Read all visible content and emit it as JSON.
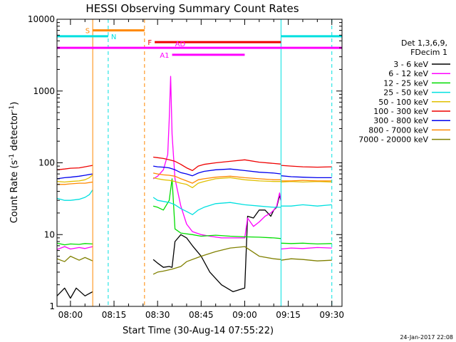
{
  "chart_data": {
    "type": "line",
    "title": "HESSI Observing Summary Count Rates",
    "xlabel": "Start Time (30-Aug-14 07:55:22)",
    "ylabel": "Count Rate (s",
    "ylabel_sup": "-1",
    "ylabel_tail": " detector",
    "ylabel_sup2": "-1",
    "ylabel_close": ")",
    "footer": "24-Jan-2017 22:08",
    "y_scale": "log",
    "ylim": [
      1,
      10000
    ],
    "xlim": [
      "07:55:22",
      "09:33:30"
    ],
    "x_ticks": [
      {
        "label": "08:00",
        "t": "08:00"
      },
      {
        "label": "08:15",
        "t": "08:15"
      },
      {
        "label": "08:30",
        "t": "08:30"
      },
      {
        "label": "08:45",
        "t": "08:45"
      },
      {
        "label": "09:00",
        "t": "09:00"
      },
      {
        "label": "09:15",
        "t": "09:15"
      },
      {
        "label": "09:30",
        "t": "09:30"
      }
    ],
    "y_ticks": [
      {
        "label": "1",
        "v": 1
      },
      {
        "label": "10",
        "v": 10
      },
      {
        "label": "100",
        "v": 100
      },
      {
        "label": "1000",
        "v": 1000
      },
      {
        "label": "10000",
        "v": 10000
      }
    ],
    "legend": {
      "header": [
        "Det 1,3,6,9,",
        "FDecim 1"
      ],
      "placement": "right",
      "entries": [
        {
          "label": "3 - 6 keV",
          "color": "#000000"
        },
        {
          "label": "6 - 12 keV",
          "color": "#ff00ff"
        },
        {
          "label": "12 - 25 keV",
          "color": "#00dd00"
        },
        {
          "label": "25 - 50 keV",
          "color": "#00e0e0"
        },
        {
          "label": "50 - 100 keV",
          "color": "#e0c000"
        },
        {
          "label": "100 - 300 keV",
          "color": "#ee0000"
        },
        {
          "label": "300 - 800 keV",
          "color": "#0000ee"
        },
        {
          "label": "800 - 7000 keV",
          "color": "#ff8800"
        },
        {
          "label": "7000 - 20000 keV",
          "color": "#808000"
        }
      ]
    },
    "data_gaps": [
      [
        "08:07:40",
        "08:28:30"
      ]
    ],
    "vertical_markers": [
      {
        "t": "08:07:40",
        "color": "#ff8800",
        "style": "solid"
      },
      {
        "t": "08:13:00",
        "color": "#00e0e0",
        "style": "dashed"
      },
      {
        "t": "08:25:30",
        "color": "#ff8800",
        "style": "dashed"
      },
      {
        "t": "09:12:30",
        "color": "#00e0e0",
        "style": "solid"
      },
      {
        "t": "09:30:00",
        "color": "#00e0e0",
        "style": "dashed"
      }
    ],
    "flag_bars": [
      {
        "label": "S",
        "color": "#ff8800",
        "level": 7000,
        "start": "08:07:40",
        "end": "08:25:30",
        "label_side": "left"
      },
      {
        "label": "N",
        "color": "#00e0e0",
        "level": 5800,
        "start": "07:55:22",
        "end": "08:13:00",
        "label_side": "right"
      },
      {
        "label": "N",
        "color": "#00e0e0",
        "level": 5800,
        "start": "09:12:30",
        "end": "09:33:30",
        "label_side": "none"
      },
      {
        "label": "F",
        "color": "#ee0000",
        "level": 4800,
        "start": "08:29:00",
        "end": "09:12:30",
        "label_side": "left"
      },
      {
        "label": "AD",
        "color": "#ff00ff",
        "level": 4000,
        "start": "07:55:22",
        "end": "09:33:30",
        "label_side": "none",
        "label_at": "08:36:00"
      },
      {
        "label": "A1",
        "color": "#ff00ff",
        "level": 3200,
        "start": "08:35:00",
        "end": "09:00:00",
        "label_side": "left"
      }
    ],
    "series": [
      {
        "name": "3 - 6 keV",
        "color": "#000000",
        "segments": [
          {
            "x": [
              "07:55:22",
              "07:58:00",
              "08:00:00",
              "08:02:00",
              "08:05:00",
              "08:07:40"
            ],
            "y": [
              1.4,
              1.8,
              1.3,
              1.8,
              1.4,
              1.6
            ]
          },
          {
            "x": [
              "08:28:30",
              "08:30:00",
              "08:32:00",
              "08:34:00",
              "08:35:00",
              "08:36:00",
              "08:38:00",
              "08:40:00",
              "08:42:00",
              "08:45:00",
              "08:48:00",
              "08:52:00",
              "08:56:00",
              "09:00:00",
              "09:01:00",
              "09:03:00",
              "09:05:00",
              "09:07:00",
              "09:09:00",
              "09:10:00",
              "09:11:00",
              "09:12:00",
              "09:12:30"
            ],
            "y": [
              4.5,
              4.0,
              3.5,
              3.6,
              3.5,
              8,
              10,
              9,
              7,
              5,
              3,
              2,
              1.6,
              1.8,
              18,
              17,
              22,
              22,
              18,
              22,
              24,
              35,
              30
            ]
          }
        ]
      },
      {
        "name": "6 - 12 keV",
        "color": "#ff00ff",
        "segments": [
          {
            "x": [
              "07:55:22",
              "07:58:00",
              "08:00:00",
              "08:03:00",
              "08:05:00",
              "08:07:40"
            ],
            "y": [
              6.2,
              6.8,
              6.3,
              6.6,
              6.4,
              6.8
            ]
          },
          {
            "x": [
              "08:28:30",
              "08:30:00",
              "08:32:00",
              "08:33:30",
              "08:34:00",
              "08:34:30",
              "08:35:00",
              "08:36:00",
              "08:38:00",
              "08:40:00",
              "08:42:00",
              "08:45:00",
              "08:48:00",
              "08:52:00",
              "08:56:00",
              "09:00:00",
              "09:01:00",
              "09:03:00",
              "09:05:00",
              "09:07:00",
              "09:09:00",
              "09:10:00",
              "09:11:00",
              "09:12:00",
              "09:12:30"
            ],
            "y": [
              60,
              65,
              80,
              130,
              400,
              1600,
              250,
              60,
              25,
              14,
              11,
              10,
              9.5,
              9,
              9,
              9,
              17,
              13,
              15,
              18,
              20,
              22,
              25,
              38,
              30
            ]
          },
          {
            "x": [
              "09:12:30",
              "09:16:00",
              "09:20:00",
              "09:25:00",
              "09:30:00"
            ],
            "y": [
              6.3,
              6.5,
              6.4,
              6.6,
              6.5
            ]
          }
        ]
      },
      {
        "name": "12 - 25 keV",
        "color": "#00dd00",
        "segments": [
          {
            "x": [
              "07:55:22",
              "07:58:00",
              "08:00:00",
              "08:03:00",
              "08:05:00",
              "08:07:40"
            ],
            "y": [
              7.6,
              7.2,
              7.4,
              7.3,
              7.5,
              7.4
            ]
          },
          {
            "x": [
              "08:28:30",
              "08:30:00",
              "08:32:00",
              "08:34:00",
              "08:35:00",
              "08:36:00",
              "08:38:00",
              "08:42:00",
              "08:45:00",
              "08:50:00",
              "08:55:00",
              "09:00:00",
              "09:05:00",
              "09:10:00",
              "09:12:30"
            ],
            "y": [
              25,
              24,
              22,
              30,
              60,
              12,
              10.5,
              10,
              9.5,
              9.8,
              9.5,
              9.3,
              9.2,
              9.0,
              8.8
            ]
          },
          {
            "x": [
              "09:12:30",
              "09:16:00",
              "09:20:00",
              "09:25:00",
              "09:30:00"
            ],
            "y": [
              7.6,
              7.5,
              7.6,
              7.4,
              7.5
            ]
          }
        ]
      },
      {
        "name": "25 - 50 keV",
        "color": "#00e0e0",
        "segments": [
          {
            "x": [
              "07:55:22",
              "07:58:00",
              "08:00:00",
              "08:03:00",
              "08:05:00",
              "08:06:30",
              "08:07:40"
            ],
            "y": [
              32,
              30,
              30,
              31,
              33,
              36,
              42
            ]
          },
          {
            "x": [
              "08:28:30",
              "08:30:00",
              "08:32:00",
              "08:34:00",
              "08:36:00",
              "08:38:00",
              "08:40:00",
              "08:42:00",
              "08:44:00",
              "08:46:00",
              "08:50:00",
              "08:55:00",
              "09:00:00",
              "09:05:00",
              "09:10:00",
              "09:12:30"
            ],
            "y": [
              33,
              30,
              29,
              28,
              26,
              23,
              21,
              19,
              22,
              24,
              27,
              28,
              26,
              25,
              24,
              24
            ]
          },
          {
            "x": [
              "09:12:30",
              "09:16:00",
              "09:20:00",
              "09:25:00",
              "09:30:00"
            ],
            "y": [
              25,
              25,
              26,
              25,
              26
            ]
          }
        ]
      },
      {
        "name": "50 - 100 keV",
        "color": "#e0c000",
        "segments": [
          {
            "x": [
              "07:55:22",
              "07:58:00",
              "08:00:00",
              "08:03:00",
              "08:05:00",
              "08:06:30",
              "08:07:40"
            ],
            "y": [
              55,
              54,
              55,
              56,
              58,
              62,
              68
            ]
          },
          {
            "x": [
              "08:28:30",
              "08:30:00",
              "08:32:00",
              "08:34:00",
              "08:36:00",
              "08:38:00",
              "08:40:00",
              "08:42:00",
              "08:44:00",
              "08:46:00",
              "08:50:00",
              "08:55:00",
              "09:00:00",
              "09:05:00",
              "09:10:00",
              "09:12:30"
            ],
            "y": [
              62,
              60,
              58,
              57,
              55,
              52,
              50,
              45,
              52,
              55,
              60,
              62,
              58,
              56,
              55,
              55
            ]
          },
          {
            "x": [
              "09:12:30",
              "09:16:00",
              "09:20:00",
              "09:25:00",
              "09:30:00"
            ],
            "y": [
              54,
              55,
              54,
              55,
              54
            ]
          }
        ]
      },
      {
        "name": "100 - 300 keV",
        "color": "#ee0000",
        "segments": [
          {
            "x": [
              "07:55:22",
              "07:58:00",
              "08:00:00",
              "08:03:00",
              "08:05:00",
              "08:07:40"
            ],
            "y": [
              80,
              82,
              84,
              85,
              88,
              92
            ]
          },
          {
            "x": [
              "08:28:30",
              "08:30:00",
              "08:32:00",
              "08:34:00",
              "08:36:00",
              "08:38:00",
              "08:40:00",
              "08:42:00",
              "08:44:00",
              "08:46:00",
              "08:50:00",
              "08:55:00",
              "09:00:00",
              "09:05:00",
              "09:10:00",
              "09:12:30"
            ],
            "y": [
              120,
              118,
              115,
              110,
              105,
              95,
              85,
              78,
              90,
              95,
              100,
              105,
              110,
              102,
              98,
              96
            ]
          },
          {
            "x": [
              "09:12:30",
              "09:16:00",
              "09:20:00",
              "09:25:00",
              "09:30:00"
            ],
            "y": [
              92,
              90,
              88,
              87,
              88
            ]
          }
        ]
      },
      {
        "name": "300 - 800 keV",
        "color": "#0000ee",
        "segments": [
          {
            "x": [
              "07:55:22",
              "07:58:00",
              "08:00:00",
              "08:03:00",
              "08:05:00",
              "08:07:40"
            ],
            "y": [
              60,
              62,
              63,
              65,
              67,
              70
            ]
          },
          {
            "x": [
              "08:28:30",
              "08:30:00",
              "08:32:00",
              "08:34:00",
              "08:36:00",
              "08:38:00",
              "08:40:00",
              "08:42:00",
              "08:44:00",
              "08:46:00",
              "08:50:00",
              "08:55:00",
              "09:00:00",
              "09:05:00",
              "09:10:00",
              "09:12:30"
            ],
            "y": [
              90,
              88,
              87,
              85,
              80,
              73,
              70,
              66,
              72,
              76,
              80,
              82,
              78,
              74,
              72,
              70
            ]
          },
          {
            "x": [
              "09:12:30",
              "09:16:00",
              "09:20:00",
              "09:25:00",
              "09:30:00"
            ],
            "y": [
              66,
              64,
              63,
              62,
              62
            ]
          }
        ]
      },
      {
        "name": "800 - 7000 keV",
        "color": "#ff8800",
        "segments": [
          {
            "x": [
              "07:55:22",
              "07:58:00",
              "08:00:00",
              "08:03:00",
              "08:05:00",
              "08:07:40"
            ],
            "y": [
              50,
              50,
              51,
              52,
              52,
              54
            ]
          },
          {
            "x": [
              "08:28:30",
              "08:30:00",
              "08:32:00",
              "08:34:00",
              "08:36:00",
              "08:38:00",
              "08:40:00",
              "08:42:00",
              "08:44:00",
              "08:46:00",
              "08:50:00",
              "08:55:00",
              "09:00:00",
              "09:05:00",
              "09:10:00",
              "09:12:30"
            ],
            "y": [
              72,
              70,
              68,
              67,
              65,
              60,
              56,
              52,
              58,
              60,
              63,
              65,
              62,
              60,
              58,
              58
            ]
          },
          {
            "x": [
              "09:12:30",
              "09:16:00",
              "09:20:00",
              "09:25:00",
              "09:30:00"
            ],
            "y": [
              56,
              56,
              57,
              56,
              56
            ]
          }
        ]
      },
      {
        "name": "7000 - 20000 keV",
        "color": "#808000",
        "segments": [
          {
            "x": [
              "07:55:22",
              "07:58:00",
              "08:00:00",
              "08:03:00",
              "08:05:00",
              "08:07:40"
            ],
            "y": [
              4.6,
              4.2,
              5.0,
              4.4,
              4.8,
              4.3
            ]
          },
          {
            "x": [
              "08:28:30",
              "08:30:00",
              "08:32:00",
              "08:35:00",
              "08:38:00",
              "08:40:00",
              "08:45:00",
              "08:50:00",
              "08:55:00",
              "09:00:00",
              "09:05:00",
              "09:10:00",
              "09:12:30"
            ],
            "y": [
              2.8,
              3.0,
              3.1,
              3.3,
              3.6,
              4.2,
              5.0,
              5.8,
              6.5,
              6.8,
              5.0,
              4.6,
              4.5
            ]
          },
          {
            "x": [
              "09:12:30",
              "09:16:00",
              "09:20:00",
              "09:25:00",
              "09:30:00"
            ],
            "y": [
              4.4,
              4.6,
              4.5,
              4.3,
              4.4
            ]
          }
        ]
      }
    ]
  }
}
